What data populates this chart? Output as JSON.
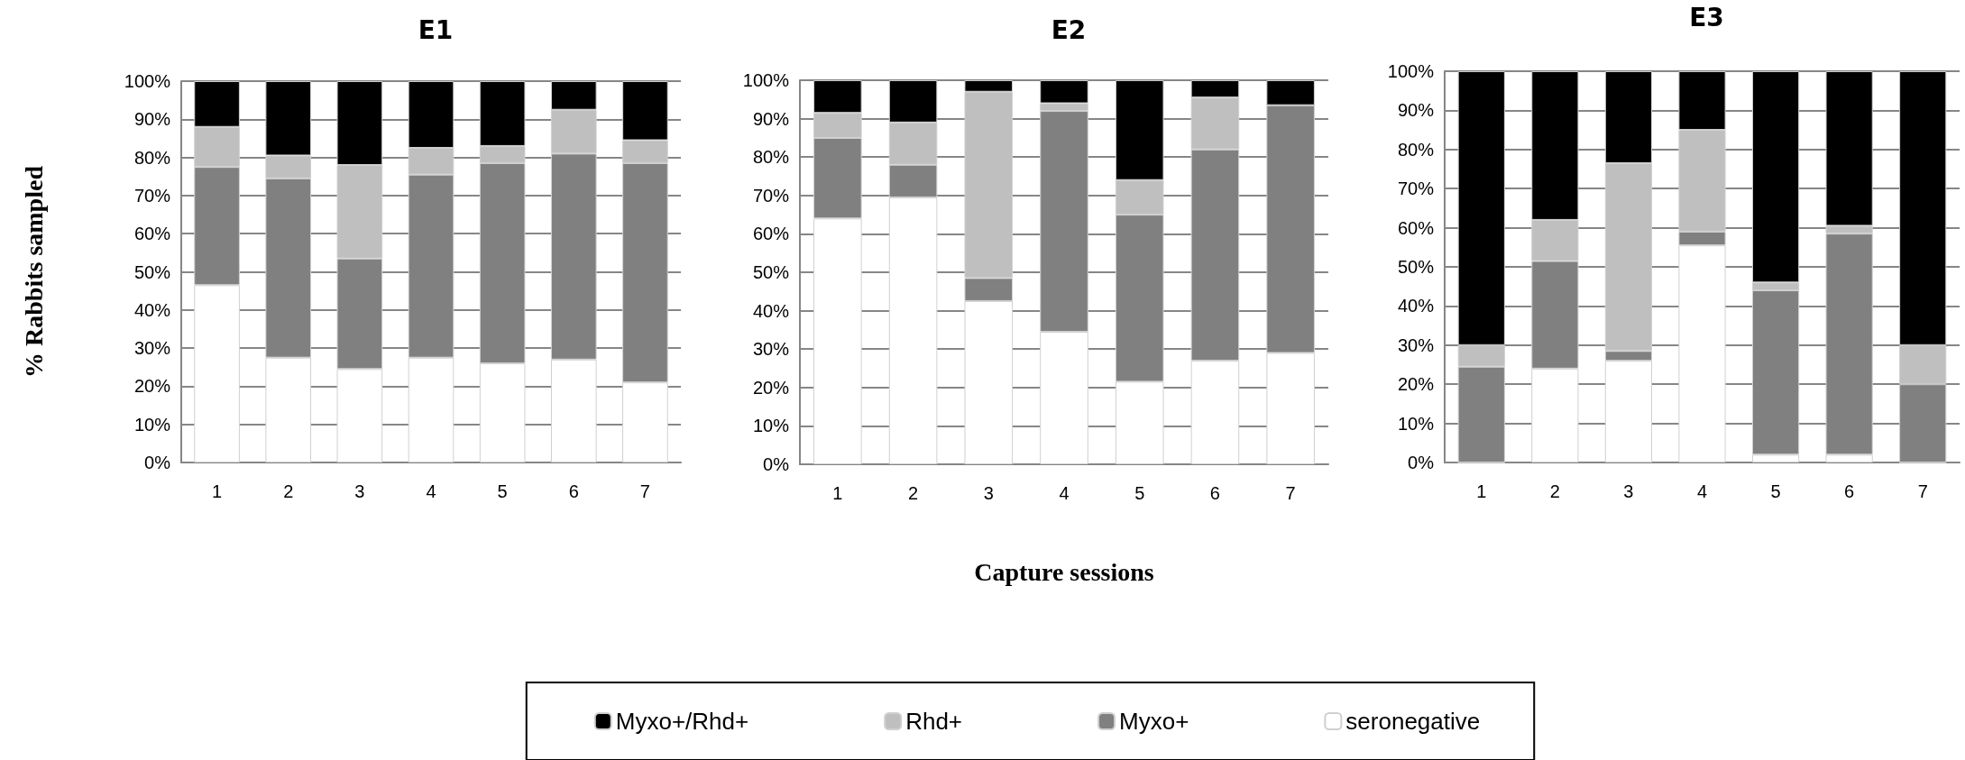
{
  "chart_data": [
    {
      "type": "bar",
      "title": "E1",
      "ylabel": "% Rabbits sampled",
      "stacked": true,
      "grid": "y",
      "categories": [
        "1",
        "2",
        "3",
        "4",
        "5",
        "6",
        "7"
      ],
      "ylim": [
        0,
        100
      ],
      "yticks": [
        {
          "value": 0,
          "label": "0%"
        },
        {
          "value": 10,
          "label": "10%"
        },
        {
          "value": 20,
          "label": "20%"
        },
        {
          "value": 30,
          "label": "30%"
        },
        {
          "value": 40,
          "label": "40%"
        },
        {
          "value": 50,
          "label": "50%"
        },
        {
          "value": 60,
          "label": "60%"
        },
        {
          "value": 70,
          "label": "70%"
        },
        {
          "value": 80,
          "label": "80%"
        },
        {
          "value": 90,
          "label": "90%"
        },
        {
          "value": 100,
          "label": "100%"
        }
      ],
      "series": [
        {
          "color": "#ffffff",
          "values": [
            46.5,
            27.5,
            24.5,
            27.5,
            26,
            27,
            21
          ]
        },
        {
          "color": "#808080",
          "values": [
            31,
            47,
            29,
            48,
            52.5,
            54,
            57.5
          ]
        },
        {
          "color": "#bfbfbf",
          "values": [
            10.5,
            6,
            24.5,
            7,
            4.5,
            11.5,
            6
          ]
        },
        {
          "color": "#000000",
          "values": [
            12,
            19.5,
            22,
            17.5,
            17,
            7.5,
            15.5
          ]
        }
      ]
    },
    {
      "type": "bar",
      "title": "E2",
      "xlabel": "Capture sessions",
      "stacked": true,
      "grid": "y",
      "legend": "bottom",
      "categories": [
        "1",
        "2",
        "3",
        "4",
        "5",
        "6",
        "7"
      ],
      "ylim": [
        0,
        100
      ],
      "yticks": [
        {
          "value": 0,
          "label": "0%"
        },
        {
          "value": 10,
          "label": "10%"
        },
        {
          "value": 20,
          "label": "20%"
        },
        {
          "value": 30,
          "label": "30%"
        },
        {
          "value": 40,
          "label": "40%"
        },
        {
          "value": 50,
          "label": "50%"
        },
        {
          "value": 60,
          "label": "60%"
        },
        {
          "value": 70,
          "label": "70%"
        },
        {
          "value": 80,
          "label": "80%"
        },
        {
          "value": 90,
          "label": "90%"
        },
        {
          "value": 100,
          "label": "100%"
        }
      ],
      "series": [
        {
          "name": "seronegative",
          "color": "#ffffff",
          "values": [
            64,
            69.5,
            42.5,
            34.5,
            21.5,
            27,
            29
          ]
        },
        {
          "name": "Myxo+",
          "color": "#808080",
          "values": [
            21,
            8.5,
            6,
            57.5,
            43.5,
            55,
            64.5
          ]
        },
        {
          "name": "Rhd+",
          "color": "#bfbfbf",
          "values": [
            6.5,
            11,
            48.5,
            2,
            9,
            13.5,
            0
          ]
        },
        {
          "name": "Myxo+/Rhd+",
          "color": "#000000",
          "values": [
            8.5,
            11,
            3,
            6,
            26,
            4.5,
            6.5
          ]
        }
      ]
    },
    {
      "type": "bar",
      "title": "E3",
      "stacked": true,
      "grid": "y",
      "categories": [
        "1",
        "2",
        "3",
        "4",
        "5",
        "6",
        "7"
      ],
      "ylim": [
        0,
        100
      ],
      "yticks": [
        {
          "value": 0,
          "label": "0%"
        },
        {
          "value": 10,
          "label": "10%"
        },
        {
          "value": 20,
          "label": "20%"
        },
        {
          "value": 30,
          "label": "30%"
        },
        {
          "value": 40,
          "label": "40%"
        },
        {
          "value": 50,
          "label": "50%"
        },
        {
          "value": 60,
          "label": "60%"
        },
        {
          "value": 70,
          "label": "70%"
        },
        {
          "value": 80,
          "label": "80%"
        },
        {
          "value": 90,
          "label": "90%"
        },
        {
          "value": 100,
          "label": "100%"
        }
      ],
      "series": [
        {
          "color": "#ffffff",
          "values": [
            0,
            24,
            26,
            55.5,
            2,
            2,
            0
          ]
        },
        {
          "color": "#808080",
          "values": [
            24.5,
            27.5,
            2.5,
            3.5,
            42,
            56.5,
            20
          ]
        },
        {
          "color": "#bfbfbf",
          "values": [
            5.5,
            10.5,
            48,
            26,
            2,
            2,
            10
          ]
        },
        {
          "color": "#000000",
          "values": [
            70,
            38,
            23.5,
            15,
            54,
            39.5,
            70
          ]
        }
      ]
    }
  ]
}
